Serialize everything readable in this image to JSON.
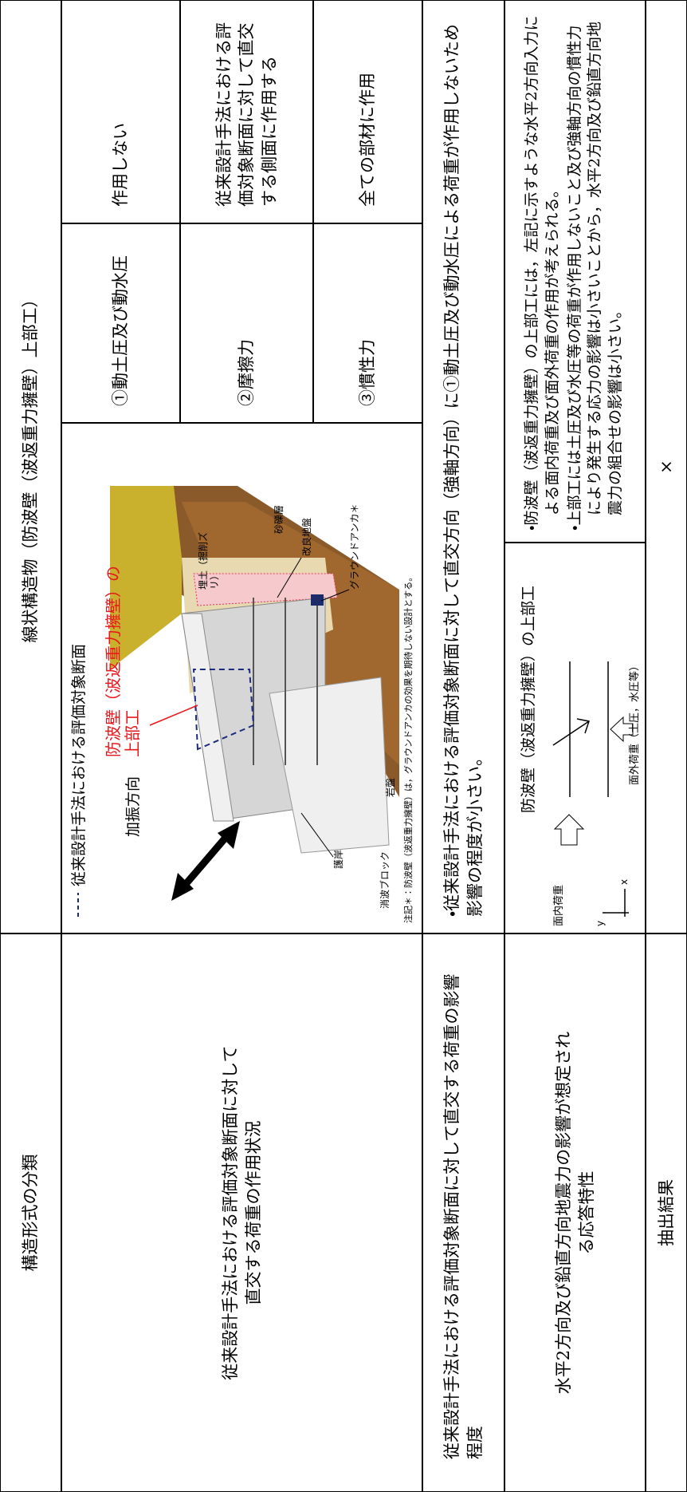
{
  "header": {
    "category_label": "構造形式の分類",
    "structure": "線状構造物（防波壁（波返重力擁壁）上部工）"
  },
  "action_row": {
    "label": "従来設計手法における評価対象断面に対して直交する荷重の作用状況",
    "figure": {
      "legend": "従来設計手法における評価対象断面",
      "shaking_direction": "加振方向",
      "target": "防波壁（波返重力擁壁）の上部工",
      "backfill": "埋土（掘削ズリ）",
      "gravel": "砂礫層",
      "improved_ground": "改良地盤",
      "anchor": "グラウンドアンカ＊",
      "revetment": "護岸",
      "wave_blocks": "消波ブロック",
      "bedrock": "岩盤",
      "note": "注記＊：防波壁（波返重力擁壁）は，グラウンドアンカの効果を期待しない設計とする。"
    },
    "loads": [
      {
        "name": "①動土圧及び動水圧",
        "action": "作用しない"
      },
      {
        "name": "②摩擦力",
        "action": "従来設計手法における評価対象断面に対して直交する側面に作用する"
      },
      {
        "name": "③慣性力",
        "action": "全ての部材に作用"
      }
    ]
  },
  "influence_row": {
    "label": "従来設計手法における評価対象断面に対して直交する荷重の影響程度",
    "text": "・従来設計手法における評価対象断面に対して直交方向（強軸方向）に①動土圧及び動水圧による荷重が作用しないため影響の程度が小さい。"
  },
  "response_row": {
    "label": "水平2方向及び鉛直方向地震力の影響が想定される応答特性",
    "figure": {
      "target": "防波壁（波返重力擁壁）の上部工",
      "in_plane": "面内荷重",
      "out_of_plane": "面外荷重（土圧，水圧等）",
      "axis_x": "x",
      "axis_y": "y"
    },
    "bullets": [
      "・防波壁（波返重力擁壁）の上部工には，左記に示すような水平2方向入力による面内荷重及び面外荷重の作用が考えられる。",
      "・上部工には土圧及び水圧等の荷重が作用しないこと及び強軸方向の慣性力により発生する応力の影響は小さいことから，水平2方向及び鉛直方向地震力の組合せの影響は小さい。"
    ]
  },
  "result_row": {
    "label": "抽出結果",
    "value": "×"
  }
}
